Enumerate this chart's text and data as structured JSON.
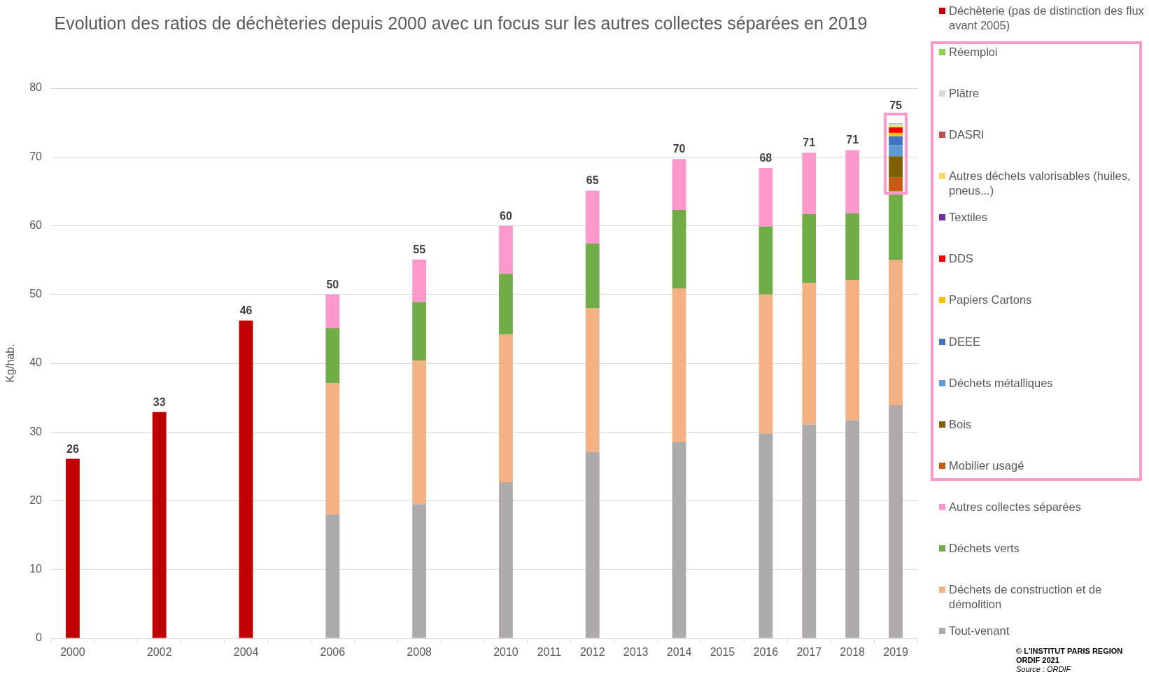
{
  "chart_data": {
    "type": "bar",
    "title": "Evolution des ratios de déchèteries depuis 2000 avec un focus sur les autres collectes séparées en 2019",
    "ylabel": "Kg/hab.",
    "categories": [
      "2000",
      null,
      "2002",
      null,
      "2004",
      null,
      "2006",
      null,
      "2008",
      null,
      "2010",
      "2011",
      "2012",
      "2013",
      "2014",
      "2015",
      "2016",
      "2017",
      "2018",
      "2019"
    ],
    "stacked": true,
    "ylim": [
      0,
      80
    ],
    "yticks": [
      0,
      10,
      20,
      30,
      40,
      50,
      60,
      70,
      80
    ],
    "grid": "y",
    "legend": "right",
    "series": [
      {
        "name": "Tout-venant",
        "color": "#aeaaaa",
        "values": [
          null,
          null,
          null,
          null,
          null,
          null,
          18.0,
          null,
          19.5,
          null,
          22.7,
          null,
          27.1,
          null,
          28.5,
          null,
          29.8,
          31.1,
          31.7,
          33.9
        ]
      },
      {
        "name": "Déchets de construction et de démolition",
        "color": "#f4b183",
        "values": [
          null,
          null,
          null,
          null,
          null,
          null,
          19.1,
          null,
          20.9,
          null,
          21.5,
          null,
          20.9,
          null,
          22.4,
          null,
          20.2,
          20.6,
          20.4,
          21.1
        ]
      },
      {
        "name": "Déchets verts",
        "color": "#70ad47",
        "values": [
          null,
          null,
          null,
          null,
          null,
          null,
          8.0,
          null,
          8.5,
          null,
          8.8,
          null,
          9.4,
          null,
          11.4,
          null,
          9.9,
          10.0,
          9.7,
          10.0
        ]
      },
      {
        "name": "Autres collectes séparées",
        "color": "#ff99cc",
        "values": [
          null,
          null,
          null,
          null,
          null,
          null,
          4.9,
          null,
          6.2,
          null,
          7.0,
          null,
          7.7,
          null,
          7.4,
          null,
          8.5,
          8.9,
          9.2,
          null
        ]
      },
      {
        "name": "Mobilier usagé",
        "color": "#c55a11",
        "values": [
          null,
          null,
          null,
          null,
          null,
          null,
          null,
          null,
          null,
          null,
          null,
          null,
          null,
          null,
          null,
          null,
          null,
          null,
          null,
          2.0
        ]
      },
      {
        "name": "Bois",
        "color": "#7f6000",
        "values": [
          null,
          null,
          null,
          null,
          null,
          null,
          null,
          null,
          null,
          null,
          null,
          null,
          null,
          null,
          null,
          null,
          null,
          null,
          null,
          3.1
        ]
      },
      {
        "name": "Déchets métalliques",
        "color": "#5b9bd5",
        "values": [
          null,
          null,
          null,
          null,
          null,
          null,
          null,
          null,
          null,
          null,
          null,
          null,
          null,
          null,
          null,
          null,
          null,
          null,
          null,
          1.6
        ]
      },
      {
        "name": "DEEE",
        "color": "#4472c4",
        "values": [
          null,
          null,
          null,
          null,
          null,
          null,
          null,
          null,
          null,
          null,
          null,
          null,
          null,
          null,
          null,
          null,
          null,
          null,
          null,
          1.3
        ]
      },
      {
        "name": "Papiers Cartons",
        "color": "#ffc000",
        "values": [
          null,
          null,
          null,
          null,
          null,
          null,
          null,
          null,
          null,
          null,
          null,
          null,
          null,
          null,
          null,
          null,
          null,
          null,
          null,
          0.5
        ]
      },
      {
        "name": "DDS",
        "color": "#ff0000",
        "values": [
          null,
          null,
          null,
          null,
          null,
          null,
          null,
          null,
          null,
          null,
          null,
          null,
          null,
          null,
          null,
          null,
          null,
          null,
          null,
          0.7
        ]
      },
      {
        "name": "Textiles",
        "color": "#7030a0",
        "values": [
          null,
          null,
          null,
          null,
          null,
          null,
          null,
          null,
          null,
          null,
          null,
          null,
          null,
          null,
          null,
          null,
          null,
          null,
          null,
          0.1
        ]
      },
      {
        "name": "Autres déchets valorisables (huiles, pneus...)",
        "color": "#ffd966",
        "values": [
          null,
          null,
          null,
          null,
          null,
          null,
          null,
          null,
          null,
          null,
          null,
          null,
          null,
          null,
          null,
          null,
          null,
          null,
          null,
          0.2
        ]
      },
      {
        "name": "DASRI",
        "color": "#c0504d",
        "values": [
          null,
          null,
          null,
          null,
          null,
          null,
          null,
          null,
          null,
          null,
          null,
          null,
          null,
          null,
          null,
          null,
          null,
          null,
          null,
          null
        ]
      },
      {
        "name": "Plâtre",
        "color": "#d9d9d9",
        "values": [
          null,
          null,
          null,
          null,
          null,
          null,
          null,
          null,
          null,
          null,
          null,
          null,
          null,
          null,
          null,
          null,
          null,
          null,
          null,
          0.3
        ]
      },
      {
        "name": "Réemploi",
        "color": "#92d050",
        "values": [
          null,
          null,
          null,
          null,
          null,
          null,
          null,
          null,
          null,
          null,
          null,
          null,
          null,
          null,
          null,
          null,
          null,
          null,
          null,
          0.1
        ]
      },
      {
        "name": "Déchèterie (pas de distinction des flux avant 2005)",
        "color": "#c00000",
        "values": [
          26.1,
          null,
          32.9,
          null,
          46.2,
          null,
          null,
          null,
          null,
          null,
          null,
          null,
          null,
          null,
          null,
          null,
          null,
          null,
          null,
          null
        ]
      }
    ],
    "totals": [
      "26",
      null,
      "33",
      null,
      "46",
      null,
      "50",
      null,
      "55",
      null,
      "60",
      null,
      "65",
      null,
      "70",
      null,
      "68",
      "71",
      "71",
      "75"
    ],
    "annotations": [
      "© L'INSTITUT PARIS REGION",
      "ORDIF 2021",
      "Source : ORDIF"
    ]
  }
}
